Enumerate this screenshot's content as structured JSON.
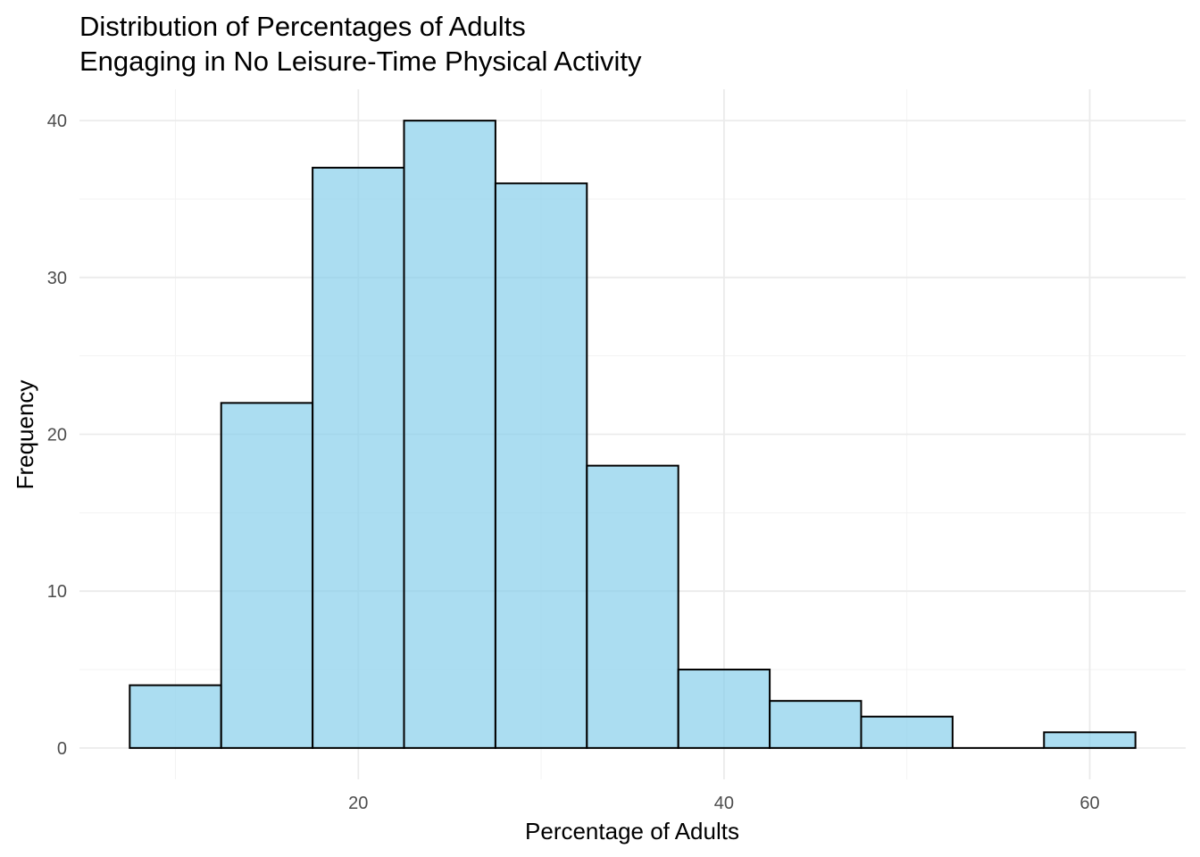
{
  "chart_data": {
    "type": "bar",
    "title_lines": [
      "Distribution of Percentages of Adults",
      "Engaging in No Leisure-Time Physical Activity"
    ],
    "xlabel": "Percentage of Adults",
    "ylabel": "Frequency",
    "bin_width": 5,
    "bins": [
      {
        "start": 7.5,
        "end": 12.5,
        "count": 4
      },
      {
        "start": 12.5,
        "end": 17.5,
        "count": 22
      },
      {
        "start": 17.5,
        "end": 22.5,
        "count": 37
      },
      {
        "start": 22.5,
        "end": 27.5,
        "count": 40
      },
      {
        "start": 27.5,
        "end": 32.5,
        "count": 36
      },
      {
        "start": 32.5,
        "end": 37.5,
        "count": 18
      },
      {
        "start": 37.5,
        "end": 42.5,
        "count": 5
      },
      {
        "start": 42.5,
        "end": 47.5,
        "count": 3
      },
      {
        "start": 47.5,
        "end": 52.5,
        "count": 2
      },
      {
        "start": 52.5,
        "end": 57.5,
        "count": 0
      },
      {
        "start": 57.5,
        "end": 62.5,
        "count": 1
      }
    ],
    "xlim": [
      4.75,
      65.25
    ],
    "ylim": [
      -2,
      42
    ],
    "x_ticks": [
      20,
      40,
      60
    ],
    "y_ticks": [
      0,
      10,
      20,
      30,
      40
    ],
    "grid": true,
    "fill_color": "#87CEEB",
    "fill_opacity": 0.7,
    "outline_color": "#000000"
  }
}
